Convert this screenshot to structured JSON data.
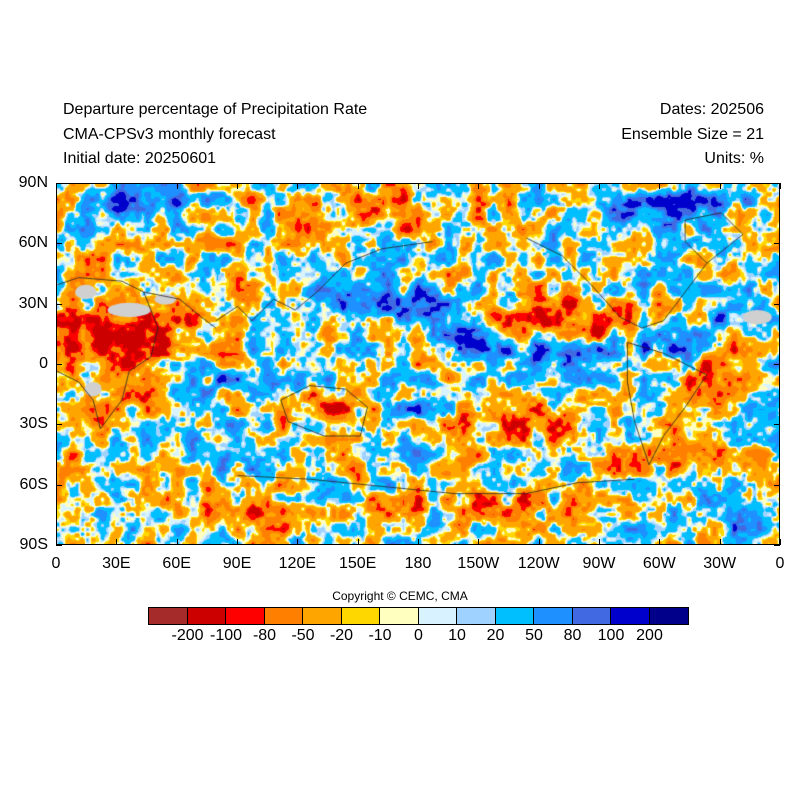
{
  "header": {
    "title": "Departure percentage of Precipitation Rate",
    "model": "CMA-CPSv3 monthly forecast",
    "initial_date": "Initial date: 20250601",
    "dates": "Dates: 202506",
    "ensemble": "Ensemble Size = 21",
    "units": "Units: %"
  },
  "map": {
    "projection": "cylindrical equidistant",
    "lat_range": [
      -90,
      90
    ],
    "lon_range": [
      0,
      360
    ],
    "lat_labels": [
      "90N",
      "60N",
      "30N",
      "0",
      "30S",
      "60S",
      "90S"
    ],
    "lon_labels": [
      "0",
      "30E",
      "60E",
      "90E",
      "120E",
      "150E",
      "180",
      "150W",
      "120W",
      "90W",
      "60W",
      "30W",
      "0"
    ],
    "missing_color": "#d0d0d0"
  },
  "copyright": "Copyright © CEMC, CMA",
  "colorbar": {
    "colors": [
      "#a52a2a",
      "#cd0000",
      "#ff0000",
      "#ff7f00",
      "#ffa500",
      "#ffd700",
      "#ffffc0",
      "#d8f3ff",
      "#a0d2ff",
      "#00bfff",
      "#1e90ff",
      "#4169e1",
      "#0000cd",
      "#00008b"
    ],
    "labels": [
      "-200",
      "-100",
      "-80",
      "-50",
      "-20",
      "-10",
      "0",
      "10",
      "20",
      "50",
      "80",
      "100",
      "200"
    ]
  }
}
